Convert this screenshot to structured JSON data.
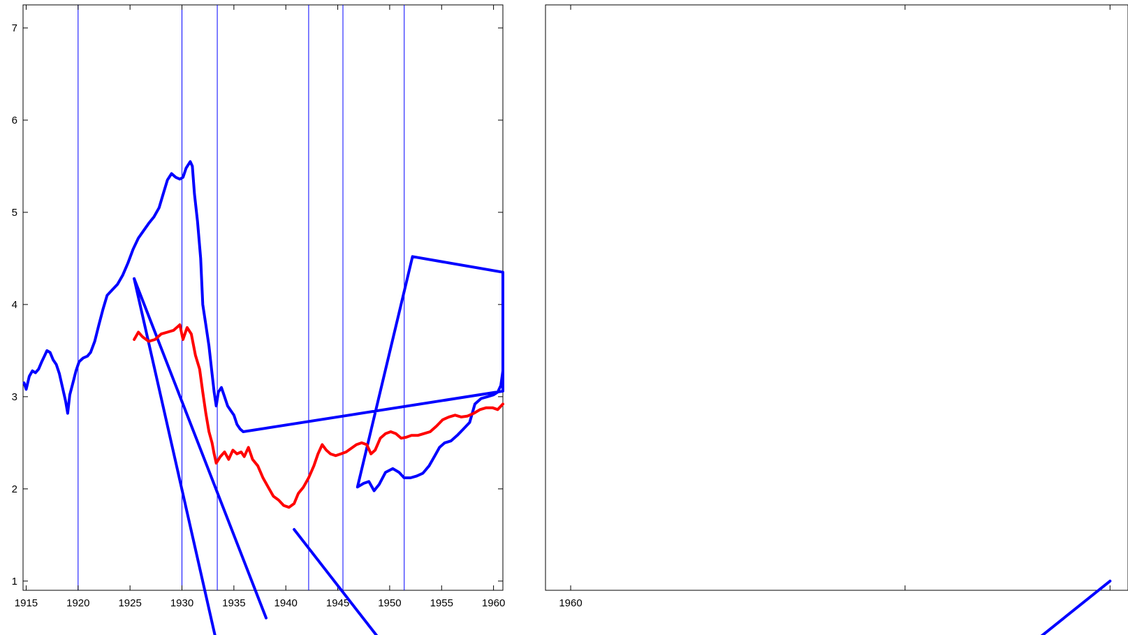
{
  "chart_data": [
    {
      "type": "line",
      "panel": "left",
      "title": "",
      "xlabel": "",
      "ylabel": "",
      "xlim": [
        1914.7,
        1960.9
      ],
      "ylim": [
        0.9,
        7.25
      ],
      "x_ticks": [
        1915,
        1920,
        1925,
        1930,
        1935,
        1940,
        1945,
        1950,
        1955,
        1960
      ],
      "y_ticks": [
        1,
        2,
        3,
        4,
        5,
        6,
        7
      ],
      "grid": false,
      "legend": "none",
      "vertical_markers": [
        1920.0,
        1930.0,
        1933.4,
        1942.2,
        1945.5,
        1951.4
      ],
      "colors": {
        "blue": "#0000ff",
        "red": "#ff0000",
        "marker": "#0000ff"
      },
      "series": [
        {
          "color": "#0000ff",
          "points": [
            [
              1914.8,
              3.15
            ],
            [
              1915.0,
              3.08
            ],
            [
              1915.3,
              3.22
            ],
            [
              1915.6,
              3.28
            ],
            [
              1915.9,
              3.26
            ],
            [
              1916.2,
              3.3
            ],
            [
              1916.5,
              3.38
            ],
            [
              1916.8,
              3.45
            ],
            [
              1917.0,
              3.5
            ],
            [
              1917.3,
              3.48
            ],
            [
              1917.6,
              3.4
            ],
            [
              1917.9,
              3.35
            ],
            [
              1918.2,
              3.25
            ],
            [
              1918.5,
              3.1
            ],
            [
              1918.8,
              2.95
            ],
            [
              1919.0,
              2.82
            ],
            [
              1919.2,
              3.02
            ],
            [
              1919.5,
              3.15
            ],
            [
              1919.8,
              3.28
            ],
            [
              1920.1,
              3.38
            ],
            [
              1920.5,
              3.42
            ],
            [
              1920.9,
              3.44
            ],
            [
              1921.2,
              3.48
            ],
            [
              1921.6,
              3.6
            ],
            [
              1922.0,
              3.78
            ],
            [
              1922.4,
              3.95
            ],
            [
              1922.8,
              4.1
            ],
            [
              1923.3,
              4.16
            ],
            [
              1923.8,
              4.22
            ],
            [
              1924.3,
              4.32
            ],
            [
              1924.8,
              4.45
            ],
            [
              1925.3,
              4.6
            ],
            [
              1925.8,
              4.72
            ],
            [
              1926.3,
              4.8
            ],
            [
              1926.8,
              4.88
            ],
            [
              1927.3,
              4.95
            ],
            [
              1927.8,
              5.05
            ],
            [
              1928.2,
              5.2
            ],
            [
              1928.6,
              5.35
            ],
            [
              1929.0,
              5.42
            ],
            [
              1929.4,
              5.38
            ],
            [
              1929.8,
              5.36
            ],
            [
              1930.1,
              5.38
            ],
            [
              1930.4,
              5.48
            ],
            [
              1930.8,
              5.55
            ],
            [
              1931.0,
              5.5
            ],
            [
              1931.2,
              5.2
            ],
            [
              1931.5,
              4.9
            ],
            [
              1931.8,
              4.5
            ],
            [
              1932.0,
              4.0
            ],
            [
              1932.3,
              3.78
            ],
            [
              1932.6,
              3.55
            ],
            [
              1932.9,
              3.25
            ],
            [
              1933.1,
              3.05
            ],
            [
              1933.3,
              2.9
            ],
            [
              1933.5,
              3.05
            ],
            [
              1933.8,
              3.1
            ],
            [
              1934.1,
              3.0
            ],
            [
              1934.4,
              2.9
            ],
            [
              1934.7,
              2.85
            ],
            [
              1935.0,
              2.8
            ],
            [
              1935.3,
              2.7
            ],
            [
              1935.6,
              2.65
            ],
            [
              1935.9,
              2.62
            ],
            [
              1960.9,
              3.06
            ],
            [
              1960.9,
              4.35
            ],
            [
              1952.2,
              4.52
            ],
            [
              1946.9,
              2.02
            ],
            [
              1947.5,
              2.06
            ],
            [
              1948.0,
              2.08
            ],
            [
              1948.5,
              1.98
            ],
            [
              1949.0,
              2.05
            ],
            [
              1949.6,
              2.18
            ],
            [
              1950.3,
              2.22
            ],
            [
              1950.9,
              2.18
            ],
            [
              1951.4,
              2.12
            ],
            [
              1952.0,
              2.12
            ],
            [
              1952.6,
              2.14
            ],
            [
              1953.2,
              2.17
            ],
            [
              1953.8,
              2.25
            ],
            [
              1954.3,
              2.35
            ],
            [
              1954.8,
              2.45
            ],
            [
              1955.3,
              2.5
            ],
            [
              1955.9,
              2.52
            ],
            [
              1956.5,
              2.58
            ],
            [
              1957.1,
              2.65
            ],
            [
              1957.7,
              2.72
            ],
            [
              1958.2,
              2.92
            ],
            [
              1958.8,
              2.98
            ],
            [
              1959.4,
              3.0
            ],
            [
              1960.0,
              3.02
            ],
            [
              1960.4,
              3.05
            ],
            [
              1960.7,
              3.12
            ],
            [
              1960.9,
              3.28
            ]
          ]
        },
        {
          "color": "#0000ff",
          "points": [
            [
              1925.4,
              4.28
            ],
            [
              1933.4,
              0.3
            ]
          ]
        },
        {
          "color": "#0000ff",
          "points": [
            [
              1925.4,
              4.28
            ],
            [
              1938.1,
              0.6
            ]
          ]
        },
        {
          "color": "#0000ff",
          "points": [
            [
              1940.8,
              1.56
            ],
            [
              1949.5,
              0.3
            ]
          ]
        },
        {
          "color": "#ff0000",
          "points": [
            [
              1925.4,
              3.62
            ],
            [
              1925.8,
              3.7
            ],
            [
              1926.2,
              3.65
            ],
            [
              1926.8,
              3.6
            ],
            [
              1927.4,
              3.62
            ],
            [
              1928.0,
              3.68
            ],
            [
              1928.6,
              3.7
            ],
            [
              1929.2,
              3.72
            ],
            [
              1929.8,
              3.78
            ],
            [
              1930.1,
              3.62
            ],
            [
              1930.5,
              3.75
            ],
            [
              1930.9,
              3.68
            ],
            [
              1931.3,
              3.45
            ],
            [
              1931.7,
              3.3
            ],
            [
              1932.0,
              3.05
            ],
            [
              1932.3,
              2.82
            ],
            [
              1932.6,
              2.62
            ],
            [
              1932.9,
              2.5
            ],
            [
              1933.1,
              2.38
            ],
            [
              1933.3,
              2.28
            ],
            [
              1933.7,
              2.35
            ],
            [
              1934.1,
              2.4
            ],
            [
              1934.5,
              2.32
            ],
            [
              1934.9,
              2.42
            ],
            [
              1935.3,
              2.38
            ],
            [
              1935.7,
              2.4
            ],
            [
              1936.0,
              2.35
            ],
            [
              1936.4,
              2.45
            ],
            [
              1936.8,
              2.32
            ],
            [
              1937.3,
              2.25
            ],
            [
              1937.8,
              2.12
            ],
            [
              1938.3,
              2.02
            ],
            [
              1938.8,
              1.92
            ],
            [
              1939.3,
              1.88
            ],
            [
              1939.8,
              1.82
            ],
            [
              1940.3,
              1.8
            ],
            [
              1940.8,
              1.84
            ],
            [
              1941.2,
              1.95
            ],
            [
              1941.7,
              2.02
            ],
            [
              1942.2,
              2.12
            ],
            [
              1942.7,
              2.25
            ],
            [
              1943.1,
              2.38
            ],
            [
              1943.5,
              2.48
            ],
            [
              1943.9,
              2.42
            ],
            [
              1944.3,
              2.38
            ],
            [
              1944.8,
              2.36
            ],
            [
              1945.3,
              2.38
            ],
            [
              1945.8,
              2.4
            ],
            [
              1946.3,
              2.44
            ],
            [
              1946.8,
              2.48
            ],
            [
              1947.3,
              2.5
            ],
            [
              1947.8,
              2.48
            ],
            [
              1948.2,
              2.38
            ],
            [
              1948.6,
              2.42
            ],
            [
              1949.1,
              2.55
            ],
            [
              1949.6,
              2.6
            ],
            [
              1950.1,
              2.62
            ],
            [
              1950.6,
              2.6
            ],
            [
              1951.1,
              2.55
            ],
            [
              1951.6,
              2.56
            ],
            [
              1952.1,
              2.58
            ],
            [
              1952.7,
              2.58
            ],
            [
              1953.3,
              2.6
            ],
            [
              1953.9,
              2.62
            ],
            [
              1954.5,
              2.68
            ],
            [
              1955.1,
              2.75
            ],
            [
              1955.7,
              2.78
            ],
            [
              1956.3,
              2.8
            ],
            [
              1956.9,
              2.78
            ],
            [
              1957.5,
              2.79
            ],
            [
              1958.1,
              2.82
            ],
            [
              1958.7,
              2.86
            ],
            [
              1959.3,
              2.88
            ],
            [
              1959.9,
              2.88
            ],
            [
              1960.4,
              2.86
            ],
            [
              1960.9,
              2.92
            ]
          ]
        }
      ]
    },
    {
      "type": "line",
      "panel": "right",
      "title": "",
      "xlabel": "",
      "ylabel": "",
      "xlim": [
        1959.3,
        1975.5
      ],
      "ylim": [
        0.9,
        7.25
      ],
      "x_ticks": [
        1960
      ],
      "minor_ticks": [
        1960,
        1969.3,
        1975.0
      ],
      "grid": false,
      "legend": "none",
      "series": [
        {
          "color": "#0000ff",
          "points": [
            [
              1959.3,
              4.35
            ]
          ]
        },
        {
          "color": "#0000ff",
          "points": [
            [
              1959.3,
              3.06
            ]
          ]
        },
        {
          "color": "#0000ff",
          "points": [
            [
              1972.6,
              0.25
            ],
            [
              1975.0,
              1.0
            ]
          ]
        }
      ]
    }
  ]
}
